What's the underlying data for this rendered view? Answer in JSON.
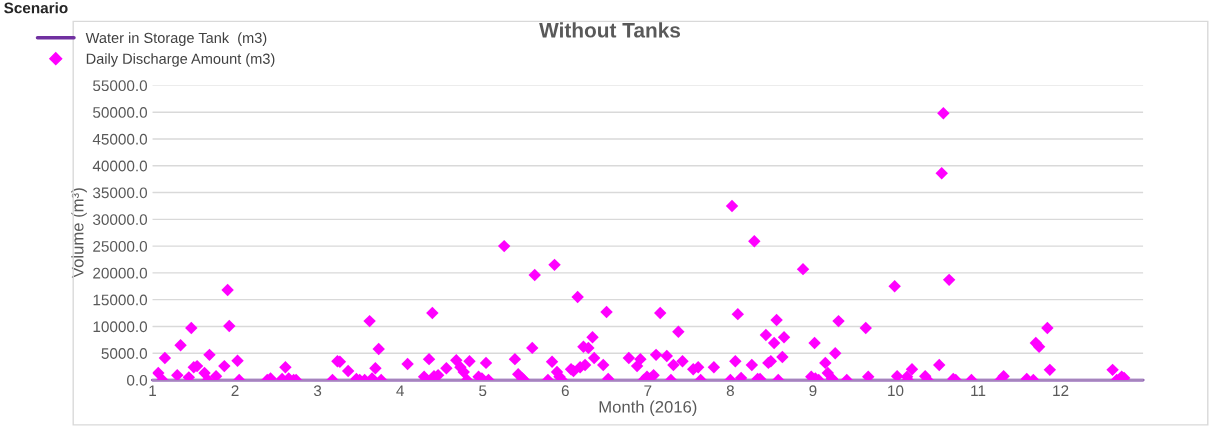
{
  "chart_data": {
    "type": "scatter",
    "title": "Without Tanks",
    "xlabel": "Month (2016)",
    "ylabel": "Volume (m³)",
    "annotations": [
      "Scenario"
    ],
    "xlim": [
      1,
      13
    ],
    "xticks": [
      1,
      2,
      3,
      4,
      5,
      6,
      7,
      8,
      9,
      10,
      11,
      12
    ],
    "ylim": [
      0,
      55000
    ],
    "yticks": [
      {
        "value": 0,
        "label": "0.0"
      },
      {
        "value": 5000,
        "label": "5000.0"
      },
      {
        "value": 10000,
        "label": "10000.0"
      },
      {
        "value": 15000,
        "label": "15000.0"
      },
      {
        "value": 20000,
        "label": "20000.0"
      },
      {
        "value": 25000,
        "label": "25000.0"
      },
      {
        "value": 30000,
        "label": "30000.0"
      },
      {
        "value": 35000,
        "label": "35000.0"
      },
      {
        "value": 40000,
        "label": "40000.0"
      },
      {
        "value": 45000,
        "label": "45000.0"
      },
      {
        "value": 50000,
        "label": "50000.0"
      },
      {
        "value": 55000,
        "label": "55000.0"
      }
    ],
    "grid": "y",
    "legend": "top left",
    "series": [
      {
        "name": "Water in Storage Tank  (m3)",
        "type": "line",
        "color": "#7030a0",
        "line_style": "solid",
        "marker": "none",
        "x": [
          1,
          13
        ],
        "values": [
          0,
          0
        ]
      },
      {
        "name": "Daily Discharge Amount (m3)",
        "color": "#ff00ff",
        "marker": "diamond",
        "x": [
          1.07,
          1.12,
          1.15,
          1.3,
          1.34,
          1.44,
          1.47,
          1.5,
          1.54,
          1.63,
          1.67,
          1.69,
          1.77,
          1.87,
          1.91,
          1.93,
          2.03,
          2.05,
          2.39,
          2.43,
          2.57,
          2.61,
          2.65,
          2.71,
          2.74,
          3.18,
          3.24,
          3.27,
          3.37,
          3.47,
          3.51,
          3.57,
          3.63,
          3.66,
          3.7,
          3.74,
          3.77,
          4.09,
          4.29,
          4.32,
          4.35,
          4.39,
          4.41,
          4.46,
          4.56,
          4.68,
          4.73,
          4.77,
          4.81,
          4.84,
          4.95,
          4.99,
          5.04,
          5.07,
          5.26,
          5.39,
          5.43,
          5.48,
          5.5,
          5.6,
          5.63,
          5.79,
          5.84,
          5.87,
          5.9,
          5.93,
          5.96,
          6.07,
          6.1,
          6.15,
          6.18,
          6.22,
          6.24,
          6.28,
          6.33,
          6.35,
          6.46,
          6.5,
          6.52,
          6.77,
          6.87,
          6.91,
          6.95,
          6.99,
          7.03,
          7.07,
          7.1,
          7.15,
          7.23,
          7.28,
          7.31,
          7.37,
          7.42,
          7.55,
          7.61,
          7.64,
          7.8,
          8.0,
          8.02,
          8.06,
          8.09,
          8.13,
          8.26,
          8.29,
          8.33,
          8.36,
          8.43,
          8.46,
          8.49,
          8.53,
          8.56,
          8.58,
          8.63,
          8.65,
          8.88,
          8.98,
          9.02,
          9.03,
          9.07,
          9.15,
          9.18,
          9.23,
          9.24,
          9.27,
          9.31,
          9.41,
          9.64,
          9.67,
          9.99,
          10.02,
          10.14,
          10.15,
          10.2,
          10.36,
          10.39,
          10.53,
          10.56,
          10.58,
          10.65,
          10.7,
          10.73,
          10.92,
          11.27,
          11.31,
          11.59,
          11.67,
          11.7,
          11.74,
          11.84,
          11.87,
          12.63,
          12.68,
          12.74,
          12.77
        ],
        "values": [
          1300,
          0,
          4100,
          900,
          6500,
          500,
          9700,
          2400,
          2600,
          1300,
          0,
          4700,
          700,
          2600,
          16800,
          10100,
          3600,
          0,
          0,
          300,
          200,
          2400,
          300,
          0,
          0,
          0,
          3500,
          3400,
          1700,
          200,
          0,
          0,
          11000,
          300,
          2200,
          5800,
          0,
          3000,
          600,
          0,
          3900,
          12500,
          700,
          900,
          2200,
          3700,
          2400,
          1500,
          0,
          3500,
          600,
          300,
          3200,
          0,
          25000,
          3900,
          1100,
          300,
          0,
          6000,
          19600,
          0,
          3400,
          21500,
          1500,
          600,
          0,
          2000,
          1700,
          15500,
          2400,
          6200,
          2800,
          6000,
          8000,
          4100,
          2800,
          12700,
          200,
          4100,
          2600,
          3900,
          0,
          600,
          300,
          900,
          4700,
          12500,
          4500,
          0,
          2800,
          9000,
          3500,
          2000,
          2400,
          0,
          2400,
          0,
          32500,
          3500,
          12300,
          400,
          2800,
          25900,
          200,
          200,
          8400,
          3200,
          3500,
          6900,
          11200,
          0,
          4300,
          8000,
          20700,
          600,
          6900,
          300,
          0,
          3200,
          1300,
          300,
          0,
          5000,
          11000,
          0,
          9700,
          600,
          17500,
          700,
          600,
          0,
          2000,
          700,
          0,
          2800,
          38600,
          49800,
          18700,
          200,
          0,
          0,
          0,
          700,
          200,
          0,
          6900,
          6200,
          9700,
          1900,
          1900,
          0,
          600,
          400
        ]
      }
    ]
  }
}
